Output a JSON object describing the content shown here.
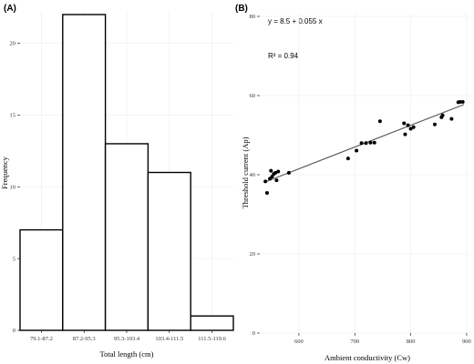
{
  "chart_data": [
    {
      "panel": "(A)",
      "type": "bar",
      "categories": [
        "79.1-87.2",
        "87.2-95.3",
        "95.3-103.4",
        "103.4-111.5",
        "111.5-119.6"
      ],
      "values": [
        7,
        22,
        13,
        11,
        1
      ],
      "xlabel": "Total length (cm)",
      "ylabel": "Frequency",
      "ylim": [
        0,
        22
      ],
      "yticks": [
        0,
        5,
        10,
        15,
        20
      ],
      "grid": true
    },
    {
      "panel": "(B)",
      "type": "scatter",
      "xlabel": "Ambient conductivity (Cw)",
      "ylabel": "Threshold current (Ap)",
      "xlim": [
        530,
        905
      ],
      "ylim": [
        0,
        80
      ],
      "xticks": [
        600,
        700,
        800,
        900
      ],
      "yticks": [
        0,
        20,
        40,
        60,
        80
      ],
      "grid": true,
      "equation": "y = 8.5 + 0.055 x",
      "r2": "R² = 0.94",
      "fit": {
        "intercept": 8.5,
        "slope": 0.055,
        "x_range": [
          540,
          895
        ]
      },
      "points": [
        [
          540,
          38.3
        ],
        [
          543,
          35.4
        ],
        [
          548,
          39.0
        ],
        [
          550,
          41.0
        ],
        [
          552,
          39.5
        ],
        [
          555,
          40.2
        ],
        [
          558,
          40.5
        ],
        [
          560,
          38.6
        ],
        [
          563,
          40.8
        ],
        [
          582,
          40.5
        ],
        [
          688,
          44.1
        ],
        [
          703,
          46.1
        ],
        [
          712,
          48.0
        ],
        [
          720,
          48.0
        ],
        [
          728,
          48.1
        ],
        [
          735,
          48.1
        ],
        [
          745,
          53.5
        ],
        [
          788,
          53.0
        ],
        [
          790,
          50.2
        ],
        [
          795,
          52.5
        ],
        [
          800,
          51.6
        ],
        [
          805,
          52.0
        ],
        [
          843,
          52.7
        ],
        [
          855,
          54.5
        ],
        [
          857,
          55.0
        ],
        [
          873,
          54.1
        ],
        [
          885,
          58.3
        ],
        [
          888,
          58.4
        ],
        [
          893,
          58.4
        ]
      ]
    }
  ]
}
